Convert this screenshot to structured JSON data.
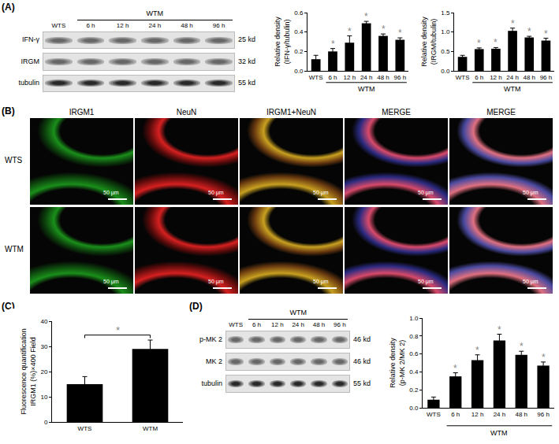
{
  "panels": {
    "A": "(A)",
    "B": "(B)",
    "C": "(C)",
    "D": "(D)"
  },
  "blots": [
    {
      "lanes": [
        "WTS",
        "6 h",
        "12 h",
        "24 h",
        "48 h",
        "96 h"
      ],
      "group": "WTM",
      "group_lanes": [
        "6 h",
        "12 h",
        "24 h",
        "48 h",
        "96 h"
      ],
      "rows": [
        {
          "protein": "IFN-γ",
          "size": "25 kd"
        },
        {
          "protein": "IRGM",
          "size": "32 kd"
        },
        {
          "protein": "tubulin",
          "size": "55 kd"
        }
      ]
    },
    {
      "lanes": [
        "WTS",
        "6 h",
        "12 h",
        "24 h",
        "48 h",
        "96 h"
      ],
      "group": "WTM",
      "group_lanes": [
        "6 h",
        "12 h",
        "24 h",
        "48 h",
        "96 h"
      ],
      "rows": [
        {
          "protein": "p-MK 2",
          "size": "46 kd"
        },
        {
          "protein": "MK 2",
          "size": "46 kd"
        },
        {
          "protein": "tubulin",
          "size": "55 kd"
        }
      ]
    }
  ],
  "micrographs": {
    "columns": [
      "IRGM1",
      "NeuN",
      "IRGM1+NeuN",
      "MERGE",
      "MERGE"
    ],
    "rows": [
      "WTS",
      "WTM"
    ],
    "scale_bar": "50 μm"
  },
  "chart_data": [
    {
      "type": "bar",
      "y_label": "Relative density\n(IFN-γ/tubulin)",
      "categories": [
        "WTS",
        "6 h",
        "12 h",
        "24 h",
        "48 h",
        "96 h"
      ],
      "values": [
        0.12,
        0.2,
        0.29,
        0.49,
        0.36,
        0.32
      ],
      "errors": [
        0.04,
        0.03,
        0.07,
        0.02,
        0.02,
        0.02
      ],
      "color": "#000000",
      "ylim": [
        0,
        0.6
      ],
      "yticks": [
        {
          "value": 0,
          "label": "0.0"
        },
        0.2,
        0.4,
        0.6
      ],
      "grid": false,
      "group": {
        "text": "WTM",
        "categories": [
          "6 h",
          "12 h",
          "24 h",
          "48 h",
          "96 h"
        ]
      },
      "annotations": [
        {
          "category": "6 h",
          "text": "*"
        },
        {
          "category": "12 h",
          "text": "*"
        },
        {
          "category": "24 h",
          "text": "*"
        },
        {
          "category": "48 h",
          "text": "*"
        },
        {
          "category": "96 h",
          "text": "*"
        }
      ]
    },
    {
      "type": "bar",
      "y_label": "Relative density\n(IRGM/tubulin)",
      "categories": [
        "WTS",
        "6 h",
        "12 h",
        "24 h",
        "48 h",
        "96 h"
      ],
      "values": [
        0.36,
        0.56,
        0.57,
        1.03,
        0.86,
        0.78
      ],
      "errors": [
        0.04,
        0.03,
        0.03,
        0.07,
        0.03,
        0.06
      ],
      "color": "#000000",
      "ylim": [
        0,
        1.5
      ],
      "yticks": [
        {
          "value": 0,
          "label": "0.0"
        },
        0.5,
        {
          "value": 1,
          "label": "1.0"
        },
        1.5
      ],
      "grid": false,
      "group": {
        "text": "WTM",
        "categories": [
          "6 h",
          "12 h",
          "24 h",
          "48 h",
          "96 h"
        ]
      },
      "annotations": [
        {
          "category": "6 h",
          "text": "*"
        },
        {
          "category": "12 h",
          "text": "*"
        },
        {
          "category": "24 h",
          "text": "*"
        },
        {
          "category": "48 h",
          "text": "*"
        },
        {
          "category": "96 h",
          "text": "*"
        }
      ]
    },
    {
      "type": "bar",
      "y_label": "Fluorescence quantification\nIRGM1 (%)×400 Field",
      "categories": [
        "WTS",
        "WTM"
      ],
      "values": [
        15,
        29
      ],
      "errors": [
        3,
        3.5
      ],
      "color": "#000000",
      "ylim": [
        0,
        40
      ],
      "yticks": [
        0,
        10,
        20,
        30,
        40
      ],
      "grid": false,
      "annotations": [
        {
          "categories": [
            "WTS",
            "WTM"
          ],
          "text": "*"
        }
      ]
    },
    {
      "type": "bar",
      "y_label": "Relative density\n(p-MK 2/MK 2)",
      "categories": [
        "WTS",
        "6 h",
        "12 h",
        "24 h",
        "48 h",
        "96 h"
      ],
      "values": [
        0.09,
        0.35,
        0.53,
        0.75,
        0.59,
        0.47
      ],
      "errors": [
        0.03,
        0.04,
        0.06,
        0.07,
        0.04,
        0.04
      ],
      "color": "#000000",
      "ylim": [
        0,
        1
      ],
      "yticks": [
        {
          "value": 0,
          "label": "0.0"
        },
        0.2,
        0.4,
        0.6,
        0.8,
        {
          "value": 1,
          "label": "1.0"
        }
      ],
      "grid": false,
      "group": {
        "text": "WTM",
        "categories": [
          "6 h",
          "12 h",
          "24 h",
          "48 h",
          "96 h"
        ]
      },
      "annotations": [
        {
          "category": "6 h",
          "text": "*"
        },
        {
          "category": "12 h",
          "text": "*"
        },
        {
          "category": "24 h",
          "text": "*"
        },
        {
          "category": "48 h",
          "text": "*"
        },
        {
          "category": "96 h",
          "text": "*"
        }
      ]
    }
  ]
}
